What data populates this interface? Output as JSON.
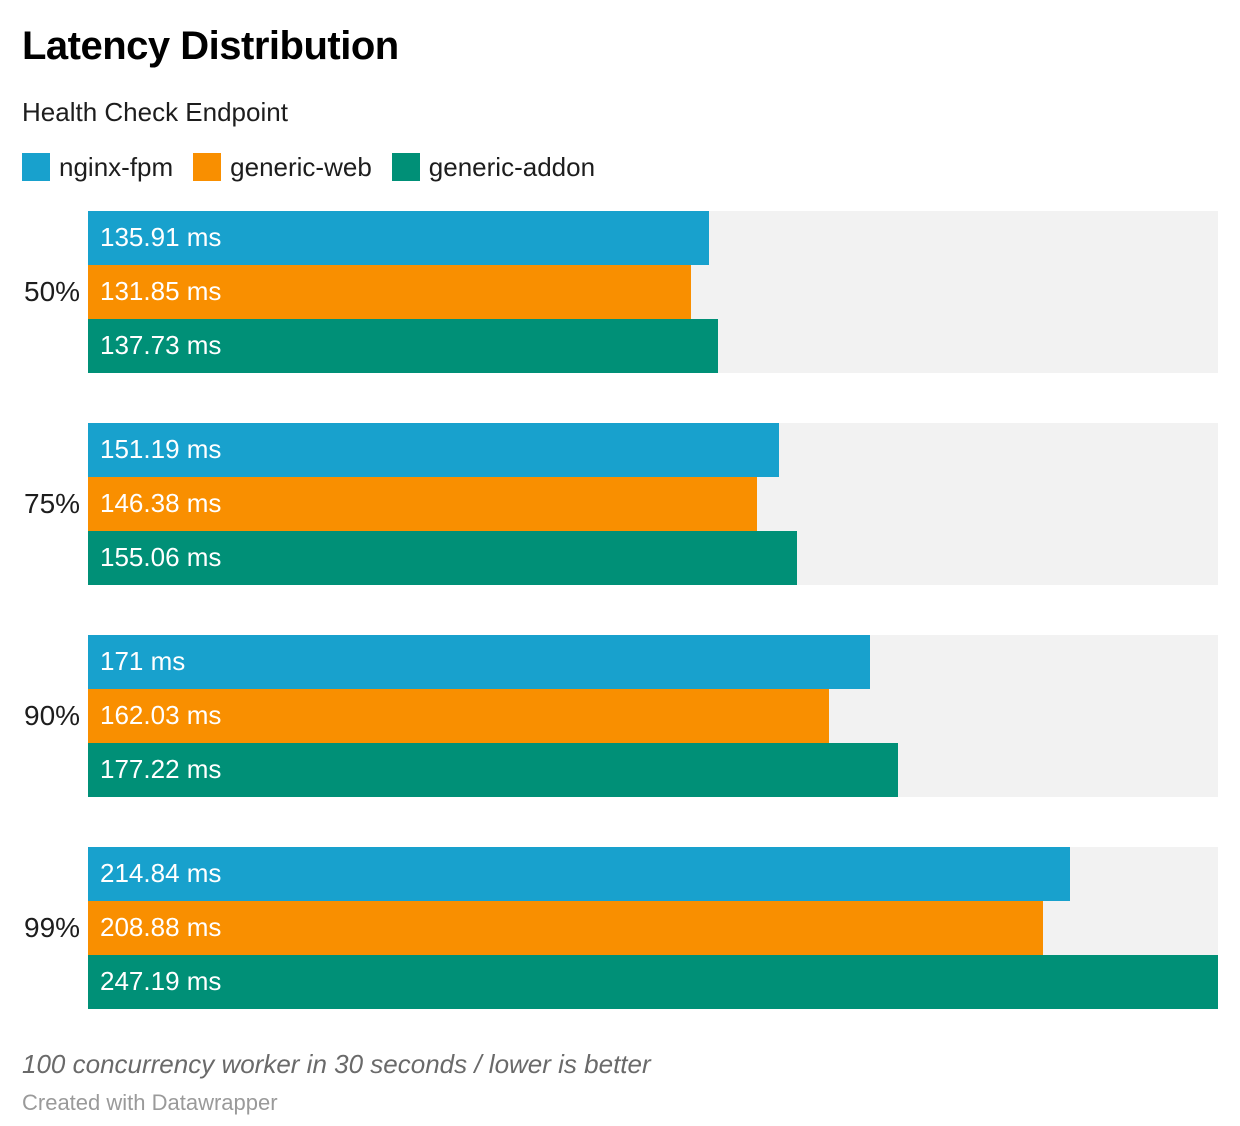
{
  "header": {
    "title": "Latency Distribution",
    "subtitle": "Health Check Endpoint"
  },
  "legend": [
    {
      "label": "nginx-fpm",
      "color": "#18a1cd"
    },
    {
      "label": "generic-web",
      "color": "#f98f00"
    },
    {
      "label": "generic-addon",
      "color": "#009077"
    }
  ],
  "chart_data": {
    "type": "bar",
    "orientation": "horizontal",
    "title": "Latency Distribution",
    "subtitle": "Health Check Endpoint",
    "categories": [
      "50%",
      "75%",
      "90%",
      "99%"
    ],
    "series": [
      {
        "name": "nginx-fpm",
        "color": "#18a1cd",
        "values": [
          135.91,
          151.19,
          171,
          214.84
        ],
        "labels": [
          "135.91 ms",
          "151.19 ms",
          "171 ms",
          "214.84 ms"
        ]
      },
      {
        "name": "generic-web",
        "color": "#f98f00",
        "values": [
          131.85,
          146.38,
          162.03,
          208.88
        ],
        "labels": [
          "131.85 ms",
          "146.38 ms",
          "162.03 ms",
          "208.88 ms"
        ]
      },
      {
        "name": "generic-addon",
        "color": "#009077",
        "values": [
          137.73,
          155.06,
          177.22,
          247.19
        ],
        "labels": [
          "137.73 ms",
          "155.06 ms",
          "177.22 ms",
          "247.19 ms"
        ]
      }
    ],
    "xlim": [
      0,
      247.19
    ],
    "value_suffix": " ms",
    "grid": false,
    "legend_position": "top",
    "track_color": "#f2f2f2"
  },
  "footer": {
    "note": "100 concurrency worker in 30 seconds / lower is better",
    "attribution": "Created with Datawrapper"
  }
}
